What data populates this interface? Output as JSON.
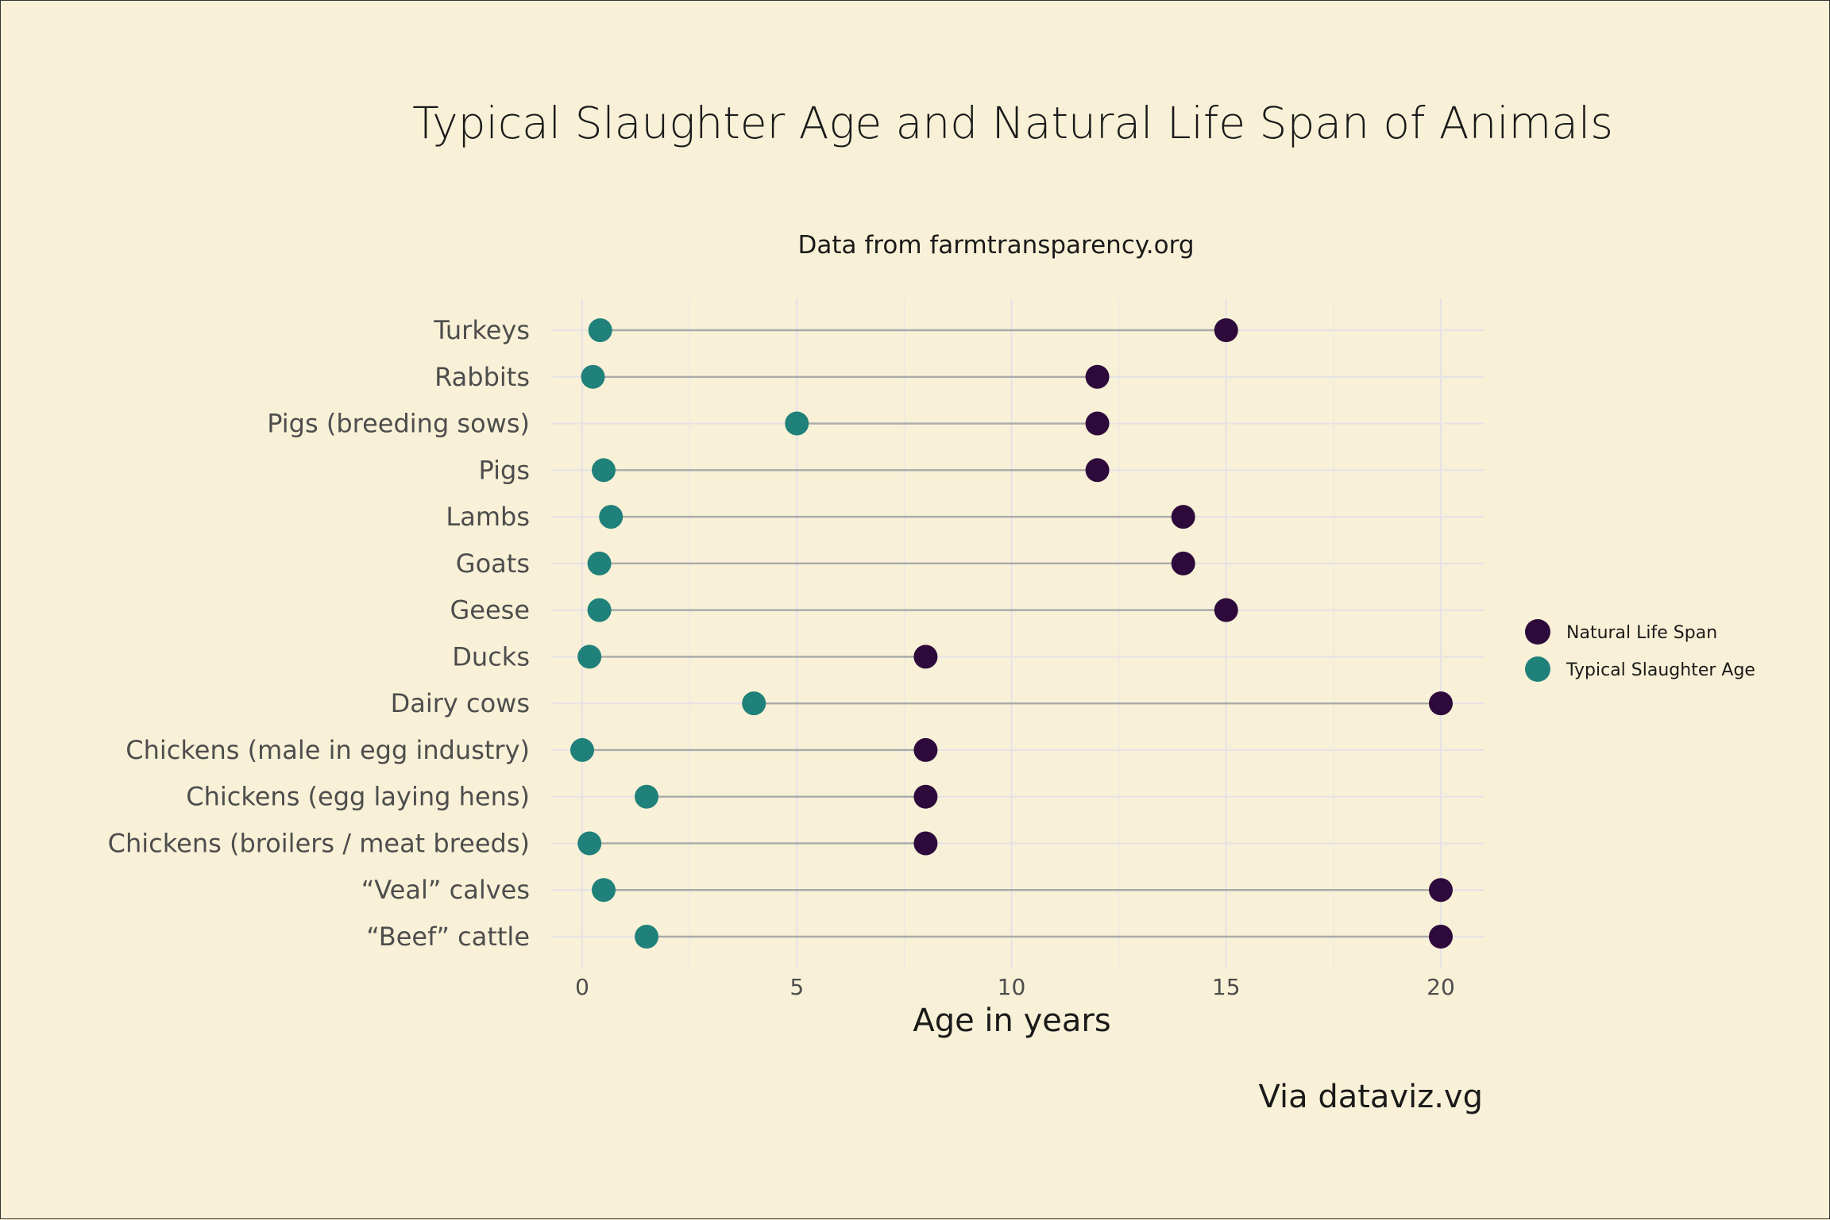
{
  "chart_data": {
    "type": "scatter",
    "title": "Typical Slaughter Age and Natural Life Span of Animals",
    "subtitle": "Data from farmtransparency.org",
    "xlabel": "Age in years",
    "caption": "Via dataviz.vg",
    "xlim": [
      -0.7,
      21
    ],
    "xticks": [
      0,
      5,
      10,
      15,
      20
    ],
    "grid": true,
    "legend_position": "right",
    "categories": [
      "Turkeys",
      "Rabbits",
      "Pigs (breeding sows)",
      "Pigs",
      "Lambs",
      "Goats",
      "Geese",
      "Ducks",
      "Dairy cows",
      "Chickens (male in egg industry)",
      "Chickens (egg laying hens)",
      "Chickens (broilers / meat breeds)",
      "“Veal” calves",
      "“Beef” cattle"
    ],
    "series": [
      {
        "name": "Natural Life Span",
        "color": "#2D0A3B",
        "values": [
          15,
          12,
          12,
          12,
          14,
          14,
          15,
          8,
          20,
          8,
          8,
          8,
          20,
          20
        ]
      },
      {
        "name": "Typical Slaughter Age",
        "color": "#20807A",
        "values": [
          0.42,
          0.25,
          5,
          0.5,
          0.67,
          0.4,
          0.4,
          0.17,
          4,
          0,
          1.5,
          0.17,
          0.5,
          1.5
        ]
      }
    ],
    "segment_color": "#AAAAAA"
  }
}
